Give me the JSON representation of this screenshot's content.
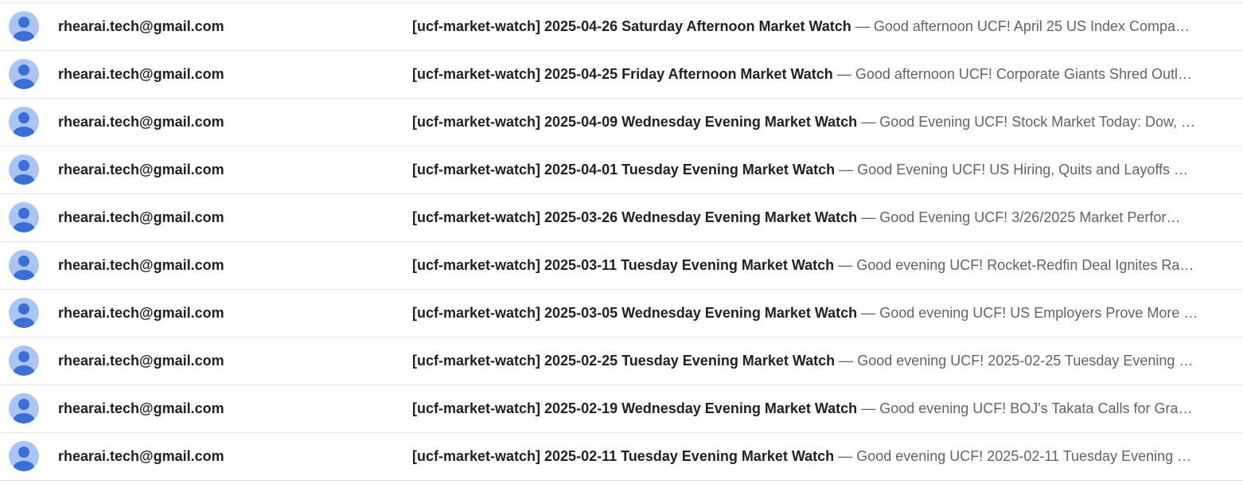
{
  "separator": " — ",
  "emails": [
    {
      "sender": "rhearai.tech@gmail.com",
      "subject": "[ucf-market-watch] 2025-04-26 Saturday Afternoon Market Watch",
      "snippet": "Good afternoon UCF! April 25 US Index Compa…"
    },
    {
      "sender": "rhearai.tech@gmail.com",
      "subject": "[ucf-market-watch] 2025-04-25 Friday Afternoon Market Watch",
      "snippet": "Good afternoon UCF! Corporate Giants Shred Outl…"
    },
    {
      "sender": "rhearai.tech@gmail.com",
      "subject": "[ucf-market-watch] 2025-04-09 Wednesday Evening Market Watch",
      "snippet": "Good Evening UCF! Stock Market Today: Dow, …"
    },
    {
      "sender": "rhearai.tech@gmail.com",
      "subject": "[ucf-market-watch] 2025-04-01 Tuesday Evening Market Watch",
      "snippet": "Good Evening UCF! US Hiring, Quits and Layoffs …"
    },
    {
      "sender": "rhearai.tech@gmail.com",
      "subject": "[ucf-market-watch] 2025-03-26 Wednesday Evening Market Watch",
      "snippet": "Good Evening UCF! 3/26/2025 Market Perfor…"
    },
    {
      "sender": "rhearai.tech@gmail.com",
      "subject": "[ucf-market-watch] 2025-03-11 Tuesday Evening Market Watch",
      "snippet": "Good evening UCF! Rocket-Redfin Deal Ignites Ra…"
    },
    {
      "sender": "rhearai.tech@gmail.com",
      "subject": "[ucf-market-watch] 2025-03-05 Wednesday Evening Market Watch",
      "snippet": "Good evening UCF! US Employers Prove More …"
    },
    {
      "sender": "rhearai.tech@gmail.com",
      "subject": "[ucf-market-watch] 2025-02-25 Tuesday Evening Market Watch",
      "snippet": "Good evening UCF! 2025-02-25 Tuesday Evening …"
    },
    {
      "sender": "rhearai.tech@gmail.com",
      "subject": "[ucf-market-watch] 2025-02-19 Wednesday Evening Market Watch",
      "snippet": "Good evening UCF! BOJ's Takata Calls for Gra…"
    },
    {
      "sender": "rhearai.tech@gmail.com",
      "subject": "[ucf-market-watch] 2025-02-11 Tuesday Evening Market Watch",
      "snippet": "Good evening UCF! 2025-02-11 Tuesday Evening …"
    }
  ]
}
